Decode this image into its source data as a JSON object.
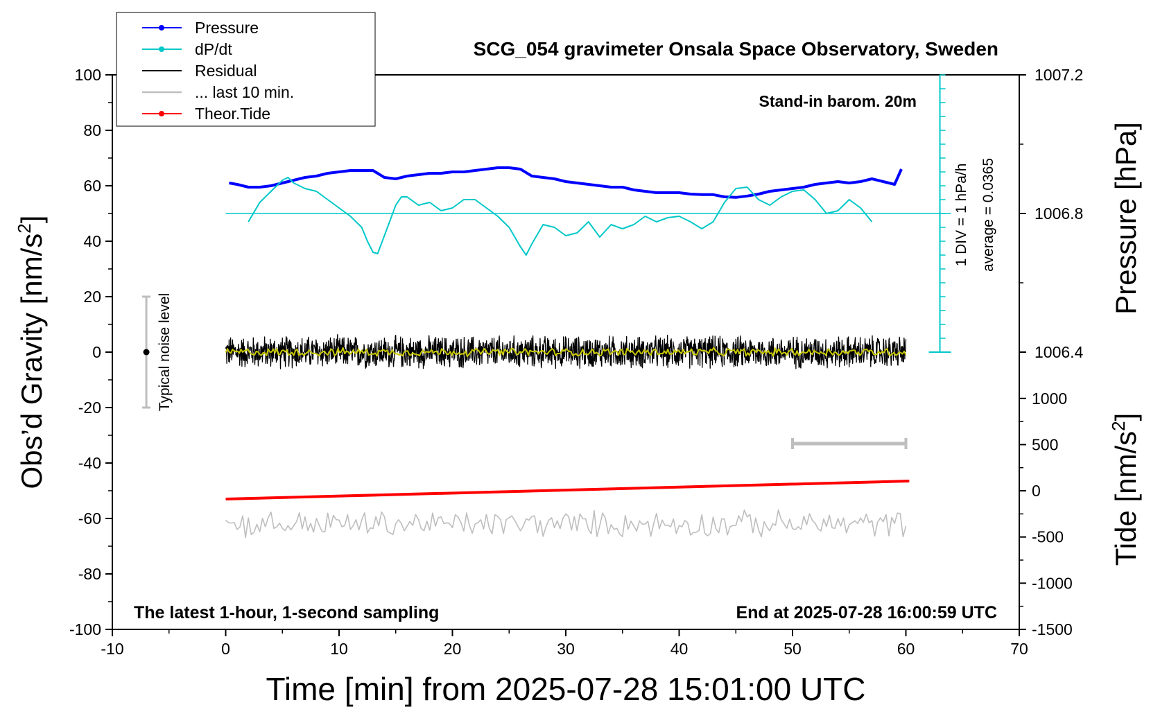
{
  "chart_data": {
    "type": "line",
    "title": "SCG_054 gravimeter Onsala Space Observatory, Sweden",
    "xlabel": "Time [min] from 2025-07-28 15:01:00 UTC",
    "ylabel_left": "Obs’d Gravity [nm/s",
    "ylabel_left_sup": "2",
    "ylabel_left_end": "]",
    "ylabel_pressure": "Pressure [hPa]",
    "ylabel_tide": "Tide [nm/s",
    "ylabel_tide_sup": "2",
    "ylabel_tide_end": "]",
    "xlim": [
      -10,
      70
    ],
    "ylim": [
      -100,
      100
    ],
    "x_ticks": [
      -10,
      0,
      10,
      20,
      30,
      40,
      50,
      60,
      70
    ],
    "y_ticks": [
      -100,
      -80,
      -60,
      -40,
      -20,
      0,
      20,
      40,
      60,
      80,
      100
    ],
    "pressure_ticks": [
      {
        "label": "1007.2",
        "value": 1007.2
      },
      {
        "label": "1006.8",
        "value": 1006.8
      },
      {
        "label": "1006.4",
        "value": 1006.4
      }
    ],
    "pressure_scale": {
      "value_at_y50": 1006.8,
      "hpa_per_gravity_unit": 0.008
    },
    "tide_ticks": [
      {
        "label": "1000",
        "value": 1000
      },
      {
        "label": "500",
        "value": 500
      },
      {
        "label": "0",
        "value": 0
      },
      {
        "label": "-500",
        "value": -500
      },
      {
        "label": "-1000",
        "value": -1000
      },
      {
        "label": "-1500",
        "value": -1500
      }
    ],
    "tide_scale": {
      "tide_at_bottom": -1500,
      "tide_at_top_of_tide_axis": 1000,
      "top_gravity_y": -16.7
    },
    "legend": {
      "placement": "top-left",
      "entries": [
        {
          "label": "Pressure",
          "color": "#0000ff",
          "marker": true
        },
        {
          "label": "dP/dt",
          "color": "#00c8c8",
          "marker": true
        },
        {
          "label": "Residual",
          "color": "#000000",
          "marker": false
        },
        {
          "label": "... last 10 min.",
          "color": "#bebebe",
          "marker": false
        },
        {
          "label": "Theor.Tide",
          "color": "#ff0000",
          "marker": true
        }
      ]
    },
    "annotations": {
      "barometer": "Stand-in barom. 20m",
      "sampling": "The latest 1-hour, 1-second sampling",
      "end_time": "End at 2025-07-28 16:00:59 UTC",
      "div_note": "1 DIV = 1 hPa/h",
      "average_note": "average = 0.0365",
      "noise_label": "Typical noise level"
    },
    "noise_bar": {
      "x": -7,
      "center": 0,
      "low": -20,
      "high": 20
    },
    "last10_bar": {
      "x_start": 50,
      "x_end": 60,
      "y": -33
    },
    "dpdt_axis": {
      "x": 63,
      "zero_level": 50,
      "top": 100,
      "bottom": 0,
      "minor_step": 5
    },
    "series": [
      {
        "name": "Pressure",
        "color": "#0000ff",
        "width": 4,
        "x": [
          0.3,
          1,
          2,
          3,
          4,
          5,
          6,
          7,
          8,
          9,
          10,
          11,
          12,
          13,
          14,
          15,
          16,
          17,
          18,
          19,
          20,
          21,
          22,
          23,
          24,
          25,
          26,
          27,
          28,
          29,
          30,
          31,
          32,
          33,
          34,
          35,
          36,
          37,
          38,
          39,
          40,
          41,
          42,
          43,
          44,
          45,
          46,
          47,
          48,
          49,
          50,
          51,
          52,
          53,
          54,
          55,
          56,
          57,
          58,
          59,
          59.6
        ],
        "y": [
          61,
          60.5,
          59.5,
          59.5,
          60,
          61,
          62,
          63,
          63.5,
          64.5,
          65,
          65.5,
          65.5,
          65.5,
          63,
          62.5,
          63.5,
          64,
          64.5,
          64.5,
          65,
          65,
          65.5,
          66,
          66.5,
          66.5,
          66,
          63.5,
          63,
          62.5,
          61.5,
          61,
          60.5,
          60,
          59.5,
          59.5,
          58.5,
          58,
          57.5,
          57.5,
          57.5,
          57,
          56.8,
          56.8,
          56,
          55.8,
          56.3,
          57,
          58,
          58.5,
          59,
          59.5,
          60.5,
          61,
          61.5,
          61,
          61.5,
          62.5,
          61.5,
          60.5,
          66
        ]
      },
      {
        "name": "dP/dt",
        "color": "#00c8c8",
        "width": 2,
        "x": [
          2,
          3,
          4,
          5,
          5.5,
          6,
          7,
          8,
          9,
          10,
          11,
          12,
          12.5,
          13,
          13.4,
          14,
          15,
          15.5,
          16,
          17,
          18,
          19,
          20,
          21,
          22,
          23,
          24,
          25,
          26,
          26.5,
          27,
          28,
          29,
          30,
          31,
          32,
          33,
          34,
          35,
          36,
          37,
          38,
          39,
          40,
          41,
          42,
          43,
          44,
          45,
          46,
          47,
          48,
          49,
          50,
          51,
          52,
          53,
          54,
          55,
          56,
          57
        ],
        "y": [
          47,
          54,
          58,
          62,
          63,
          61,
          59,
          58,
          55,
          52,
          49,
          45,
          40,
          36,
          35.5,
          42,
          53,
          56,
          56,
          53,
          54,
          51,
          52,
          55,
          55,
          52,
          49,
          45,
          38,
          35,
          39,
          46,
          45,
          42,
          43,
          47,
          41.5,
          46,
          44.5,
          46,
          49,
          47,
          48.5,
          49,
          47,
          44.5,
          47,
          54,
          59,
          59.5,
          55,
          53,
          56,
          58,
          58.5,
          55,
          50,
          51,
          55,
          52,
          47
        ]
      },
      {
        "name": "Residual",
        "color": "#000000",
        "width": 1.3,
        "x_start": 0,
        "x_end": 60,
        "y_mean": 0,
        "noise_amplitude": 6,
        "note": "1-second sampled noise around zero"
      },
      {
        "name": "Residual (smoothed)",
        "color": "#c8c800",
        "width": 2,
        "x_start": 0,
        "x_end": 60,
        "y_mean": 0,
        "noise_amplitude": 1.5
      },
      {
        "name": "... last 10 min.",
        "color": "#bebebe",
        "width": 1.6,
        "x_start": 0,
        "x_end": 60,
        "y_mean": -62,
        "noise_amplitude": 5
      },
      {
        "name": "Theor.Tide",
        "color": "#ff0000",
        "width": 4,
        "x": [
          0,
          60.3
        ],
        "y": [
          -53,
          -46.5
        ]
      }
    ]
  }
}
